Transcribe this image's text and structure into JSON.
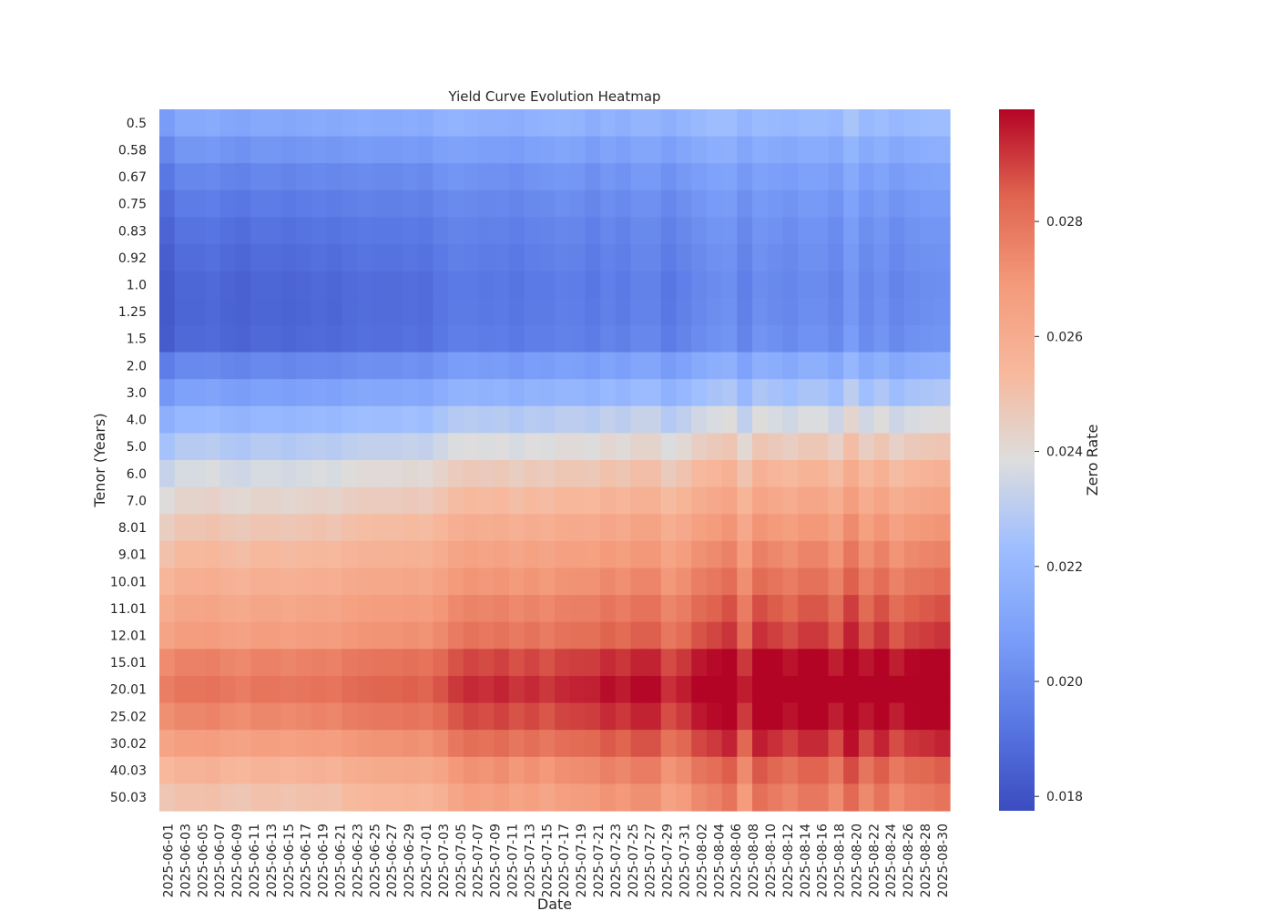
{
  "chart_data": {
    "type": "heatmap",
    "title": "Yield Curve Evolution Heatmap",
    "xlabel": "Date",
    "ylabel": "Tenor (Years)",
    "colorbar_label": "Zero Rate",
    "colormap": "coolwarm",
    "color_range": [
      0.01775,
      0.02995
    ],
    "colorbar_ticks": [
      "0.018",
      "0.020",
      "0.022",
      "0.024",
      "0.026",
      "0.028"
    ],
    "colors": {
      "low": "#3b4cc0",
      "mid": "#dddddd",
      "high": "#b40426"
    },
    "x_tick_labels": [
      "2025-06-01",
      "2025-06-03",
      "2025-06-05",
      "2025-06-07",
      "2025-06-09",
      "2025-06-11",
      "2025-06-13",
      "2025-06-15",
      "2025-06-17",
      "2025-06-19",
      "2025-06-21",
      "2025-06-23",
      "2025-06-25",
      "2025-06-27",
      "2025-06-29",
      "2025-07-01",
      "2025-07-03",
      "2025-07-05",
      "2025-07-07",
      "2025-07-09",
      "2025-07-11",
      "2025-07-13",
      "2025-07-15",
      "2025-07-17",
      "2025-07-19",
      "2025-07-21",
      "2025-07-23",
      "2025-07-25",
      "2025-07-27",
      "2025-07-29",
      "2025-07-31",
      "2025-08-02",
      "2025-08-04",
      "2025-08-06",
      "2025-08-08",
      "2025-08-10",
      "2025-08-12",
      "2025-08-14",
      "2025-08-16",
      "2025-08-18",
      "2025-08-20",
      "2025-08-22",
      "2025-08-24",
      "2025-08-26",
      "2025-08-28",
      "2025-08-30"
    ],
    "tenors": [
      "0.5",
      "0.58",
      "0.67",
      "0.75",
      "0.83",
      "0.92",
      "1.0",
      "1.25",
      "1.5",
      "2.0",
      "3.0",
      "4.0",
      "5.0",
      "6.0",
      "7.0",
      "8.01",
      "9.01",
      "10.01",
      "11.01",
      "12.01",
      "15.01",
      "20.01",
      "25.02",
      "30.02",
      "40.03",
      "50.03"
    ],
    "tenor_base": [
      0.0211,
      0.0203,
      0.0197,
      0.0193,
      0.019,
      0.0188,
      0.0186,
      0.0186,
      0.0187,
      0.0199,
      0.0209,
      0.022,
      0.0229,
      0.0237,
      0.0243,
      0.0249,
      0.0254,
      0.0259,
      0.0264,
      0.0268,
      0.0277,
      0.0281,
      0.0276,
      0.0268,
      0.0258,
      0.0252
    ],
    "date_level": [
      -0.0004,
      0.0,
      0.0,
      0.0001,
      -0.0001,
      -0.0002,
      0.0,
      0.0,
      -0.0001,
      0.0,
      0.0001,
      0.0,
      0.0002,
      0.0003,
      0.0003,
      0.0003,
      0.0004,
      0.0003,
      0.0006,
      0.0009,
      0.001,
      0.0009,
      0.001,
      0.0008,
      0.001,
      0.0009,
      0.0011,
      0.0011,
      0.001,
      0.0013,
      0.0011,
      0.0014,
      0.0014,
      0.0009,
      0.0012,
      0.0016,
      0.0018,
      0.002,
      0.0012,
      0.002,
      0.0018,
      0.0016,
      0.0019,
      0.0019,
      0.0015,
      0.0023,
      0.0016,
      0.002,
      0.0015,
      0.0018,
      0.0019,
      0.002
    ],
    "date_slope": [
      0.0,
      -0.0001,
      -0.0001,
      -0.0001,
      -0.0001,
      -0.0001,
      -0.0001,
      -0.0001,
      -0.0001,
      -0.0001,
      -0.0001,
      -0.0001,
      -5e-05,
      -5e-05,
      0.0,
      0.0,
      0.0,
      0.0,
      0.0,
      0.0001,
      0.0002,
      0.0002,
      0.00025,
      0.0002,
      0.0002,
      0.0001,
      0.00015,
      0.0002,
      0.0003,
      0.0003,
      0.0003,
      0.0003,
      0.0003,
      0.0002,
      0.0002,
      0.0003,
      0.0003,
      0.0004,
      0.0002,
      0.00045,
      0.0004,
      0.00035,
      0.0004,
      0.0004,
      0.0003,
      0.0004,
      0.0003,
      0.0004,
      0.0003,
      0.00035,
      0.00035,
      0.0004
    ]
  }
}
